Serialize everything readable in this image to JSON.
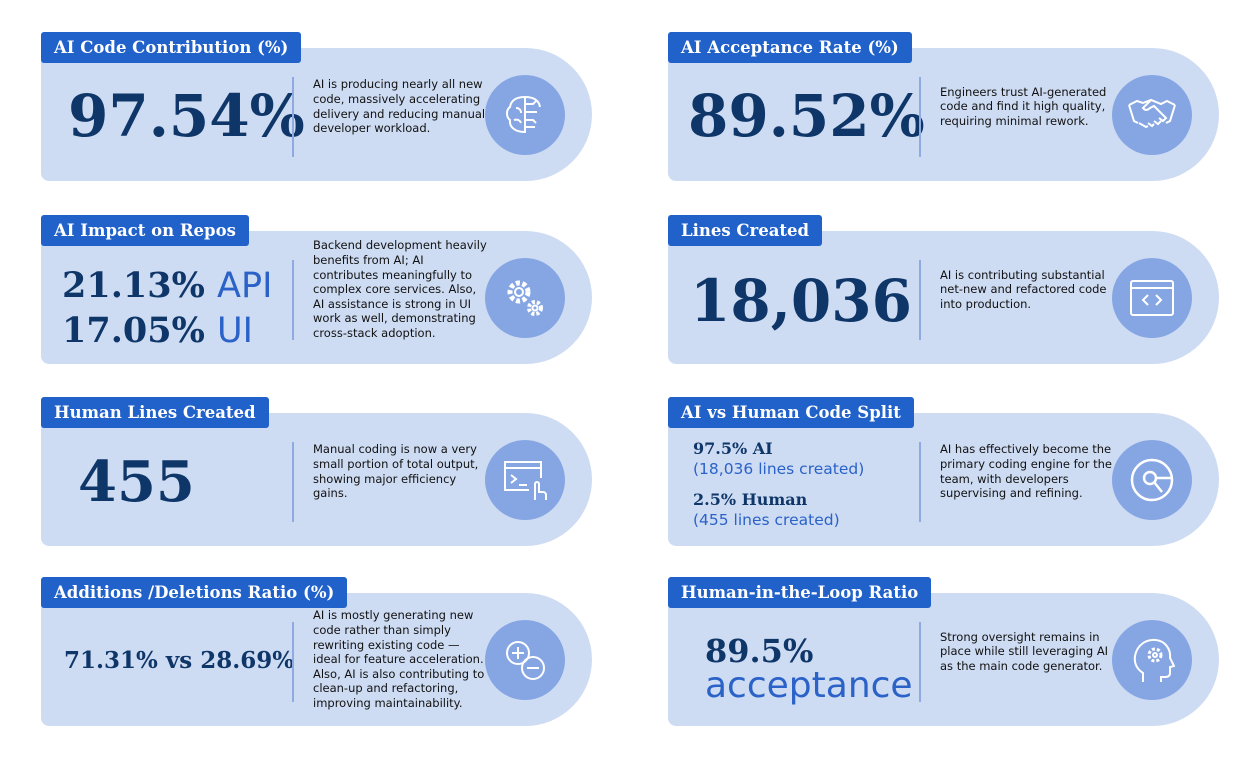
{
  "cards": [
    {
      "title": "AI Code Contribution (%)",
      "value": "97.54%",
      "description": "AI is producing nearly all new code, massively accelerating delivery and reducing manual developer workload.",
      "icon": "brain-circuit-icon"
    },
    {
      "title": "AI Acceptance Rate (%)",
      "value": "89.52%",
      "description": "Engineers trust AI-generated code and find it high quality, requiring minimal rework.",
      "icon": "handshake-icon"
    },
    {
      "title": "AI Impact on Repos",
      "value_line1_number": "21.13%",
      "value_line1_label": "API",
      "value_line2_number": "17.05%",
      "value_line2_label": "UI",
      "description": "Backend development heavily benefits from AI; AI contributes meaningfully to complex core services. Also, AI assistance is strong in UI work as well, demonstrating cross-stack adoption.",
      "icon": "gears-icon"
    },
    {
      "title": "Lines Created",
      "value": "18,036",
      "description": "AI is contributing substantial net-new and refactored code into production.",
      "icon": "code-window-icon"
    },
    {
      "title": "Human Lines Created",
      "value": "455",
      "description": "Manual coding is now a very small portion of total output, showing major efficiency gains.",
      "icon": "terminal-hand-icon"
    },
    {
      "title": "AI vs Human Code Split",
      "ai_share": "97.5% AI",
      "ai_lines": "(18,036 lines created)",
      "human_share": "2.5% Human",
      "human_lines": "(455 lines created)",
      "description": "AI has effectively become the primary coding engine for the team, with developers supervising and refining.",
      "icon": "pie-search-icon"
    },
    {
      "title": "Additions /Deletions Ratio (%)",
      "value": "71.31% vs 28.69%",
      "description": "AI is mostly generating new code rather than simply rewriting existing code — ideal for feature acceleration. Also, AI is also contributing to clean-up and refactoring, improving maintainability.",
      "icon": "plus-minus-icon"
    },
    {
      "title": "Human-in-the-Loop Ratio",
      "value_number": "89.5%",
      "value_label": "acceptance",
      "description": "Strong oversight remains in place while still leveraging AI as the main code generator.",
      "icon": "head-gear-icon"
    }
  ],
  "colors": {
    "card": "#cedcf3",
    "header": "#2161ca",
    "value": "#0f3668",
    "accent": "#2a62c8",
    "icon_circle": "#86a6e3"
  }
}
